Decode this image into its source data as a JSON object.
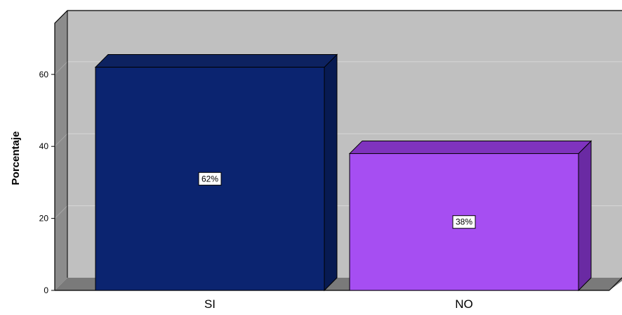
{
  "chart_data": {
    "type": "bar",
    "categories": [
      "SI",
      "NO"
    ],
    "values": [
      62,
      38
    ],
    "data_labels": [
      "62%",
      "38%"
    ],
    "ylabel": "Porcentaje",
    "xlabel": "",
    "ylim": [
      0,
      75
    ],
    "yticks": [
      0,
      20,
      40,
      60
    ],
    "ytick_labels": [
      "0",
      "20",
      "40",
      "60"
    ],
    "grid": true,
    "style": "3d",
    "colors": {
      "plot_background": "#c0c0c0",
      "wall_side": "#8c8c8c",
      "floor": "#7a7a7a",
      "gridline": "#d6d6d6",
      "bars": [
        {
          "front": "#0b2470",
          "side": "#071a52",
          "top": "#0d2260"
        },
        {
          "front": "#a64ef2",
          "side": "#6a2aa3",
          "top": "#7f33be"
        }
      ]
    }
  }
}
